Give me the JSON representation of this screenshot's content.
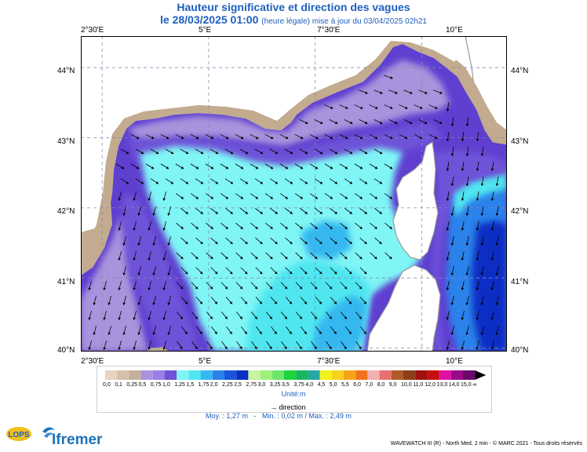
{
  "title": "Hauteur significative et direction des vagues",
  "subtitle": {
    "date": "le 28/03/2025 01:00",
    "note": "(heure légale) mise à jour du 03/04/2025 02h21"
  },
  "axes": {
    "lon_top": [
      "2°30'E",
      "5°E",
      "7°30'E",
      "10°E"
    ],
    "lon_bottom": [
      "2°30'E",
      "5°E",
      "7°30'E",
      "10°E"
    ],
    "lat_left": [
      "44°N",
      "43°N",
      "42°N",
      "41°N",
      "40°N"
    ],
    "lat_right": [
      "44°N",
      "43°N",
      "42°N",
      "41°N",
      "40°N"
    ]
  },
  "map": {
    "lon_range": [
      2.0,
      12.0
    ],
    "lat_range": [
      39.95,
      44.45
    ],
    "grid_lon": [
      2.5,
      5.0,
      7.5,
      10.0
    ],
    "grid_lat": [
      40.0,
      41.0,
      42.0,
      43.0,
      44.0
    ],
    "land_color": "#c2ab8e",
    "coast_color": "#9a9a9a",
    "arrow_color": "#000000"
  },
  "legend": {
    "labels": [
      "0,0",
      "0,1",
      "0,25",
      "0,5",
      "0,75",
      "1,0",
      "1,25",
      "1,5",
      "1,75",
      "2,0",
      "2,25",
      "2,5",
      "2,75",
      "3,0",
      "3,25",
      "3,5",
      "3,75",
      "4,0",
      "4,5",
      "5,0",
      "5,5",
      "6,0",
      "7,0",
      "8,0",
      "9,0",
      "10,0",
      "11,0",
      "12,0",
      "13,0",
      "14,0",
      "15,0",
      "∞"
    ],
    "colors": [
      "#e8d3c3",
      "#d6c0aa",
      "#c4b09a",
      "#a893dc",
      "#9a7fe6",
      "#6e52d8",
      "#7ff5f5",
      "#4fe6f0",
      "#35b8f0",
      "#2a82ea",
      "#1a55dd",
      "#0a2fc4",
      "#c9f2a2",
      "#9ff07a",
      "#6be66a",
      "#1cd43c",
      "#16b85c",
      "#27a9a0",
      "#f2f21c",
      "#f7d21c",
      "#f6a51b",
      "#f1741c",
      "#f2b0b0",
      "#e87070",
      "#b05a2a",
      "#8c3f1a",
      "#a01010",
      "#c61010",
      "#e010a0",
      "#9a0a8a",
      "#6a0a6a"
    ],
    "unit": "Unité:m",
    "direction_label": "direction",
    "arrow_glyph": "→"
  },
  "stats": {
    "moy": "Moy. : 1,27 m",
    "sep": "-",
    "minmax": "Min. : 0,02 m / Max. : 2,49 m"
  },
  "footer": "WAVEWATCH III (R) - North Med. 2 min - © MARC 2021 - Tous droits réservés",
  "logos": {
    "lops": "LOPS",
    "ifremer": "Ifremer"
  },
  "chart_data": {
    "type": "heatmap",
    "title": "Hauteur significative et direction des vagues",
    "xlabel": "",
    "ylabel": "",
    "x_ticks": [
      "2°30'E",
      "5°E",
      "7°30'E",
      "10°E"
    ],
    "y_ticks": [
      "44°N",
      "43°N",
      "42°N",
      "41°N",
      "40°N"
    ],
    "colorbar_unit": "m",
    "stats": {
      "mean": 1.27,
      "min": 0.02,
      "max": 2.49
    }
  }
}
